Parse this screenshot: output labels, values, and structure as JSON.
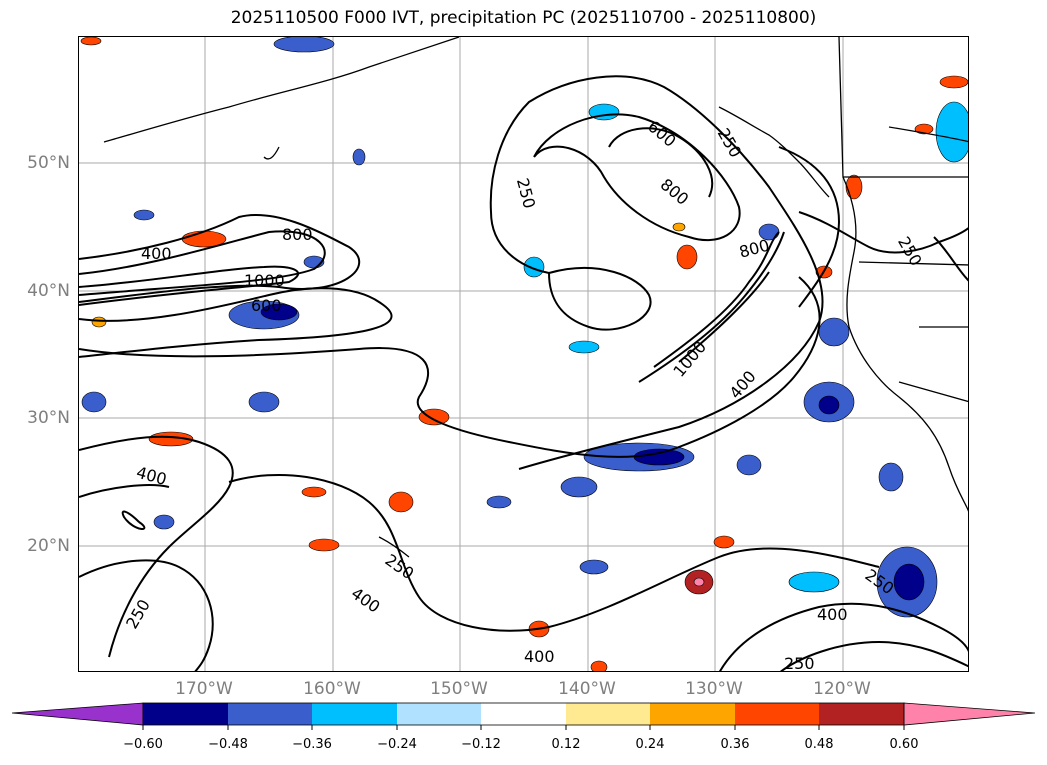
{
  "title": "2025110500 F000 IVT, precipitation PC (2025110700 - 2025110800)",
  "map": {
    "lat_labels": [
      "50°N",
      "40°N",
      "30°N",
      "20°N"
    ],
    "lon_labels": [
      "170°W",
      "160°W",
      "150°W",
      "140°W",
      "130°W",
      "120°W"
    ],
    "contour_labels": [
      "250",
      "400",
      "600",
      "800",
      "1000"
    ],
    "ivt_contour_levels": [
      250,
      400,
      600,
      800,
      1000
    ]
  },
  "colorbar": {
    "tick_labels": [
      "−0.60",
      "−0.48",
      "−0.36",
      "−0.24",
      "−0.12",
      "0.12",
      "0.24",
      "0.36",
      "0.48",
      "0.60"
    ],
    "colors": [
      "#9932cc",
      "#00008b",
      "#3a5fcd",
      "#00bfff",
      "#b0e2ff",
      "#ffffff",
      "#ffe991",
      "#ffa500",
      "#ff4500",
      "#b22222",
      "#ff82ab"
    ],
    "extend": "both"
  }
}
